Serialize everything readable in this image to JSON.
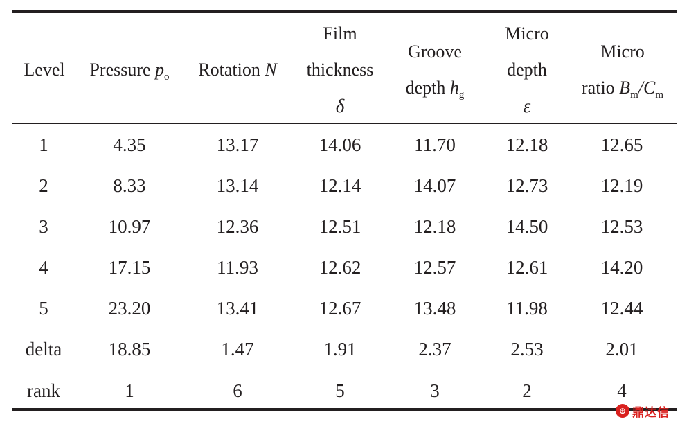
{
  "table": {
    "headers": {
      "level": "Level",
      "pressure": {
        "text": "Pressure",
        "symbol": "p",
        "subscript": "o"
      },
      "rotation": {
        "text": "Rotation",
        "symbol": "N"
      },
      "film": {
        "line1": "Film",
        "line2": "thickness",
        "symbol": "δ"
      },
      "groove": {
        "line1": "Groove",
        "line2": "depth",
        "symbol": "h",
        "subscript": "g"
      },
      "microdepth": {
        "line1": "Micro",
        "line2": "depth",
        "symbol": "ε"
      },
      "microratio": {
        "line1": "Micro",
        "line2": "ratio",
        "symbol1": "B",
        "sub1": "m",
        "slash": "/",
        "symbol2": "C",
        "sub2": "m"
      }
    },
    "rows": [
      [
        "1",
        "4.35",
        "13.17",
        "14.06",
        "11.70",
        "12.18",
        "12.65"
      ],
      [
        "2",
        "8.33",
        "13.14",
        "12.14",
        "14.07",
        "12.73",
        "12.19"
      ],
      [
        "3",
        "10.97",
        "12.36",
        "12.51",
        "12.18",
        "14.50",
        "12.53"
      ],
      [
        "4",
        "17.15",
        "11.93",
        "12.62",
        "12.57",
        "12.61",
        "14.20"
      ],
      [
        "5",
        "23.20",
        "13.41",
        "12.67",
        "13.48",
        "11.98",
        "12.44"
      ],
      [
        "delta",
        "18.85",
        "1.47",
        "1.91",
        "2.37",
        "2.53",
        "2.01"
      ],
      [
        "rank",
        "1",
        "6",
        "5",
        "3",
        "2",
        "4"
      ]
    ]
  },
  "watermark": {
    "badge": "⊕",
    "text": "鼎达信"
  }
}
